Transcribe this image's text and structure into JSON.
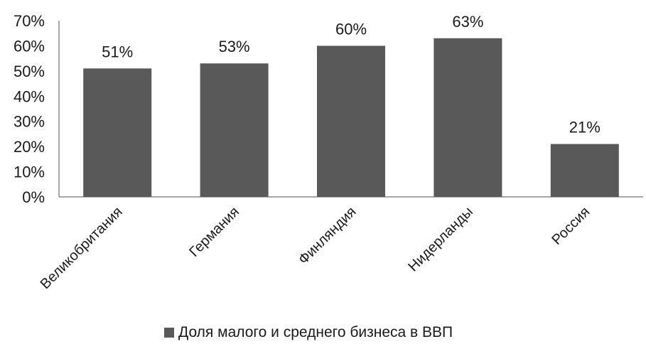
{
  "chart_data": {
    "type": "bar",
    "categories": [
      "Великобритания",
      "Германия",
      "Финляндия",
      "Нидерланды",
      "Россия"
    ],
    "values": [
      51,
      53,
      60,
      63,
      21
    ],
    "value_labels": [
      "51%",
      "53%",
      "60%",
      "63%",
      "21%"
    ],
    "series": [
      {
        "name": "Доля малого и среднего бизнеса в ВВП",
        "values": [
          51,
          53,
          60,
          63,
          21
        ]
      }
    ],
    "ylim": [
      0,
      70
    ],
    "yticks": [
      0,
      10,
      20,
      30,
      40,
      50,
      60,
      70
    ],
    "ytick_labels": [
      "0%",
      "10%",
      "20%",
      "30%",
      "40%",
      "50%",
      "60%",
      "70%"
    ],
    "legend_position": "bottom",
    "grid": false,
    "bar_color": "#595959"
  }
}
